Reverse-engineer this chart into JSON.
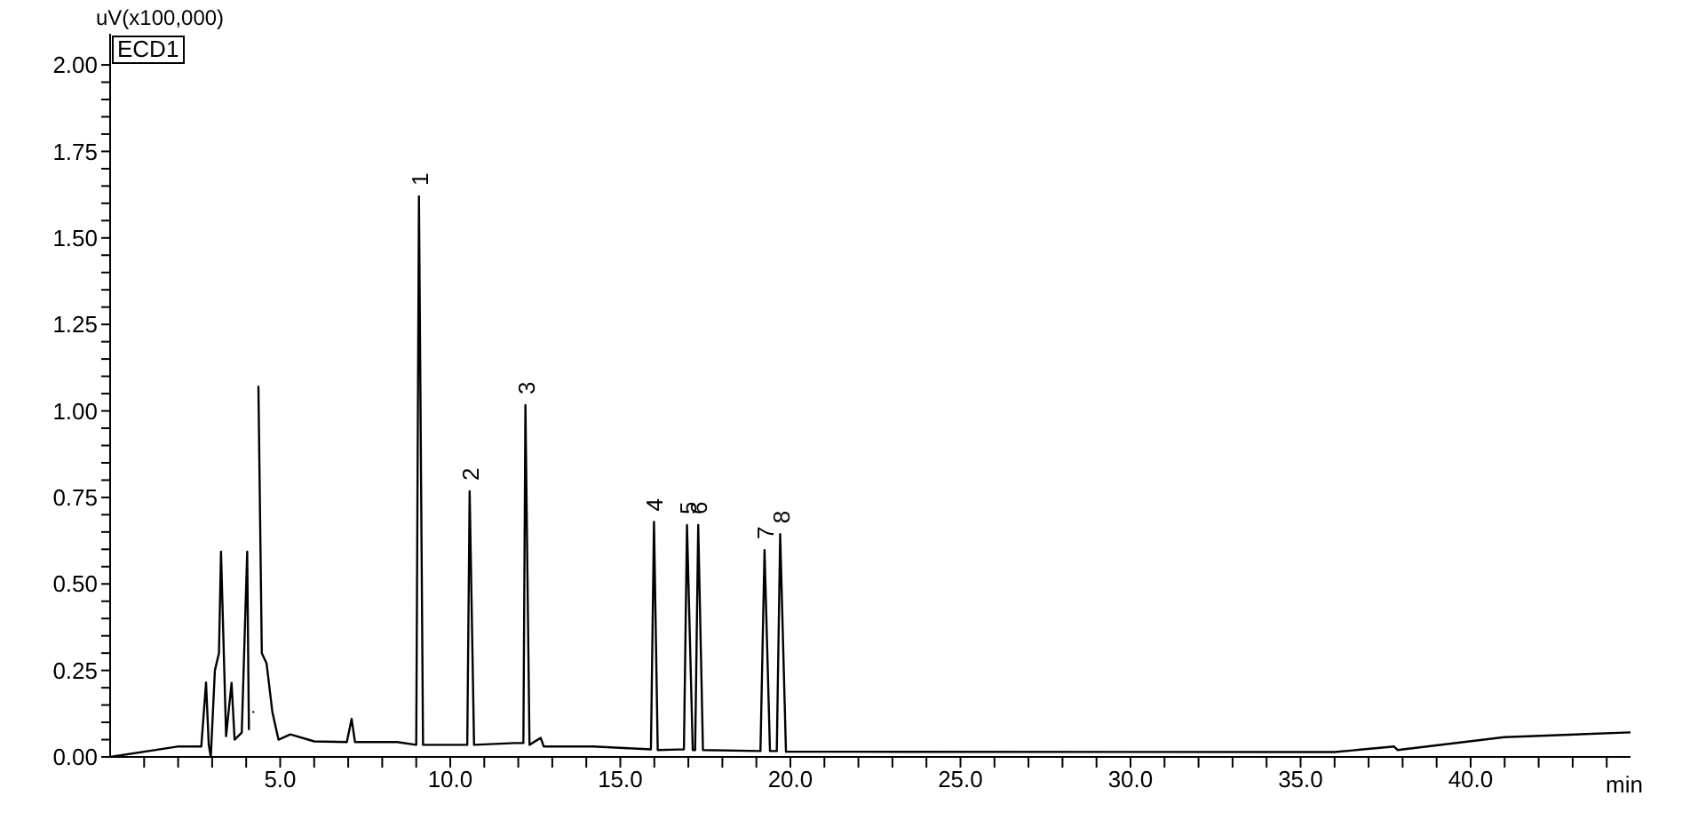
{
  "chart_data": {
    "type": "line",
    "xlabel": "min",
    "ylabel": "uV(x100,000)",
    "x": [
      0,
      1.98,
      2.68,
      2.82,
      2.9,
      2.96,
      3.08,
      3.2,
      3.26,
      3.41,
      3.57,
      3.66,
      3.87,
      4.03,
      4.08,
      4.15,
      4.21,
      4.29,
      4.36,
      4.46,
      4.6,
      4.77,
      4.95,
      5.3,
      6.0,
      6.96,
      7.1,
      7.2,
      8.44,
      9.0,
      9.08,
      9.2,
      10.5,
      10.57,
      10.7,
      11.9,
      12.15,
      12.21,
      12.33,
      12.66,
      12.75,
      14.2,
      15.9,
      15.99,
      16.1,
      16.87,
      16.96,
      17.13,
      17.2,
      17.29,
      17.43,
      19.12,
      19.24,
      19.4,
      19.6,
      19.7,
      19.87,
      21.8,
      36.0,
      37.75,
      37.85,
      40.99,
      44.7
    ],
    "series": [
      {
        "color": "#000000",
        "values": [
          0,
          0.03,
          0.03,
          0.215,
          0.035,
          0,
          0.25,
          0.3,
          0.593,
          0.06,
          0.214,
          0.05,
          0.07,
          0.593,
          0.08,
          null,
          0.13,
          null,
          1.07,
          0.3,
          0.27,
          0.13,
          0.05,
          0.065,
          0.045,
          0.043,
          0.11,
          0.043,
          0.043,
          0.035,
          1.62,
          0.035,
          0.035,
          0.768,
          0.035,
          0.04,
          0.04,
          1.017,
          0.035,
          0.055,
          0.03,
          0.03,
          0.022,
          0.679,
          0.02,
          0.022,
          0.67,
          0.02,
          0.02,
          0.67,
          0.02,
          0.017,
          0.598,
          0.017,
          0.017,
          0.644,
          0.015,
          0.015,
          0.014,
          0.03,
          0.02,
          0.057,
          0.071
        ]
      }
    ],
    "xlim": [
      0,
      44.7
    ],
    "ylim": [
      0,
      2.09
    ],
    "xticks": [
      {
        "value": 1,
        "label": null
      },
      {
        "value": 2,
        "label": null
      },
      {
        "value": 3,
        "label": null
      },
      {
        "value": 4,
        "label": null
      },
      {
        "value": 5,
        "label": "5.0"
      },
      {
        "value": 6,
        "label": null
      },
      {
        "value": 7,
        "label": null
      },
      {
        "value": 8,
        "label": null
      },
      {
        "value": 9,
        "label": null
      },
      {
        "value": 10,
        "label": "10.0"
      },
      {
        "value": 11,
        "label": null
      },
      {
        "value": 12,
        "label": null
      },
      {
        "value": 13,
        "label": null
      },
      {
        "value": 14,
        "label": null
      },
      {
        "value": 15,
        "label": "15.0"
      },
      {
        "value": 16,
        "label": null
      },
      {
        "value": 17,
        "label": null
      },
      {
        "value": 18,
        "label": null
      },
      {
        "value": 19,
        "label": null
      },
      {
        "value": 20,
        "label": "20.0"
      },
      {
        "value": 21,
        "label": null
      },
      {
        "value": 22,
        "label": null
      },
      {
        "value": 23,
        "label": null
      },
      {
        "value": 24,
        "label": null
      },
      {
        "value": 25,
        "label": "25.0"
      },
      {
        "value": 26,
        "label": null
      },
      {
        "value": 27,
        "label": null
      },
      {
        "value": 28,
        "label": null
      },
      {
        "value": 29,
        "label": null
      },
      {
        "value": 30,
        "label": "30.0"
      },
      {
        "value": 31,
        "label": null
      },
      {
        "value": 32,
        "label": null
      },
      {
        "value": 33,
        "label": null
      },
      {
        "value": 34,
        "label": null
      },
      {
        "value": 35,
        "label": "35.0"
      },
      {
        "value": 36,
        "label": null
      },
      {
        "value": 37,
        "label": null
      },
      {
        "value": 38,
        "label": null
      },
      {
        "value": 39,
        "label": null
      },
      {
        "value": 40,
        "label": "40.0"
      },
      {
        "value": 41,
        "label": null
      },
      {
        "value": 42,
        "label": null
      },
      {
        "value": 43,
        "label": null
      },
      {
        "value": 44,
        "label": null
      }
    ],
    "yticks": [
      {
        "value": 0,
        "label": "0.00"
      },
      {
        "value": 0.05,
        "label": null
      },
      {
        "value": 0.1,
        "label": null
      },
      {
        "value": 0.15,
        "label": null
      },
      {
        "value": 0.2,
        "label": null
      },
      {
        "value": 0.25,
        "label": "0.25"
      },
      {
        "value": 0.3,
        "label": null
      },
      {
        "value": 0.35,
        "label": null
      },
      {
        "value": 0.4,
        "label": null
      },
      {
        "value": 0.45,
        "label": null
      },
      {
        "value": 0.5,
        "label": "0.50"
      },
      {
        "value": 0.55,
        "label": null
      },
      {
        "value": 0.6,
        "label": null
      },
      {
        "value": 0.65,
        "label": null
      },
      {
        "value": 0.7,
        "label": null
      },
      {
        "value": 0.75,
        "label": "0.75"
      },
      {
        "value": 0.8,
        "label": null
      },
      {
        "value": 0.85,
        "label": null
      },
      {
        "value": 0.9,
        "label": null
      },
      {
        "value": 0.95,
        "label": null
      },
      {
        "value": 1,
        "label": "1.00"
      },
      {
        "value": 1.05,
        "label": null
      },
      {
        "value": 1.1,
        "label": null
      },
      {
        "value": 1.15,
        "label": null
      },
      {
        "value": 1.2,
        "label": null
      },
      {
        "value": 1.25,
        "label": "1.25"
      },
      {
        "value": 1.3,
        "label": null
      },
      {
        "value": 1.35,
        "label": null
      },
      {
        "value": 1.4,
        "label": null
      },
      {
        "value": 1.45,
        "label": null
      },
      {
        "value": 1.5,
        "label": "1.50"
      },
      {
        "value": 1.55,
        "label": null
      },
      {
        "value": 1.6,
        "label": null
      },
      {
        "value": 1.65,
        "label": null
      },
      {
        "value": 1.7,
        "label": null
      },
      {
        "value": 1.75,
        "label": "1.75"
      },
      {
        "value": 1.8,
        "label": null
      },
      {
        "value": 1.85,
        "label": null
      },
      {
        "value": 1.9,
        "label": null
      },
      {
        "value": 1.95,
        "label": null
      },
      {
        "value": 2,
        "label": "2.00"
      }
    ],
    "annotations": [
      "ECD1",
      {
        "text": "1",
        "x": 9.08,
        "y": 1.62
      },
      {
        "text": "2",
        "x": 10.57,
        "y": 0.768
      },
      {
        "text": "3",
        "x": 12.21,
        "y": 1.017
      },
      {
        "text": "4",
        "x": 15.99,
        "y": 0.679
      },
      {
        "text": "5",
        "x": 16.96,
        "y": 0.67
      },
      {
        "text": "6",
        "x": 17.29,
        "y": 0.67
      },
      {
        "text": "7",
        "x": 19.24,
        "y": 0.598
      },
      {
        "text": "8",
        "x": 19.7,
        "y": 0.644
      }
    ],
    "grid": false,
    "legend": false,
    "marker": "none",
    "line_style": "solid"
  }
}
